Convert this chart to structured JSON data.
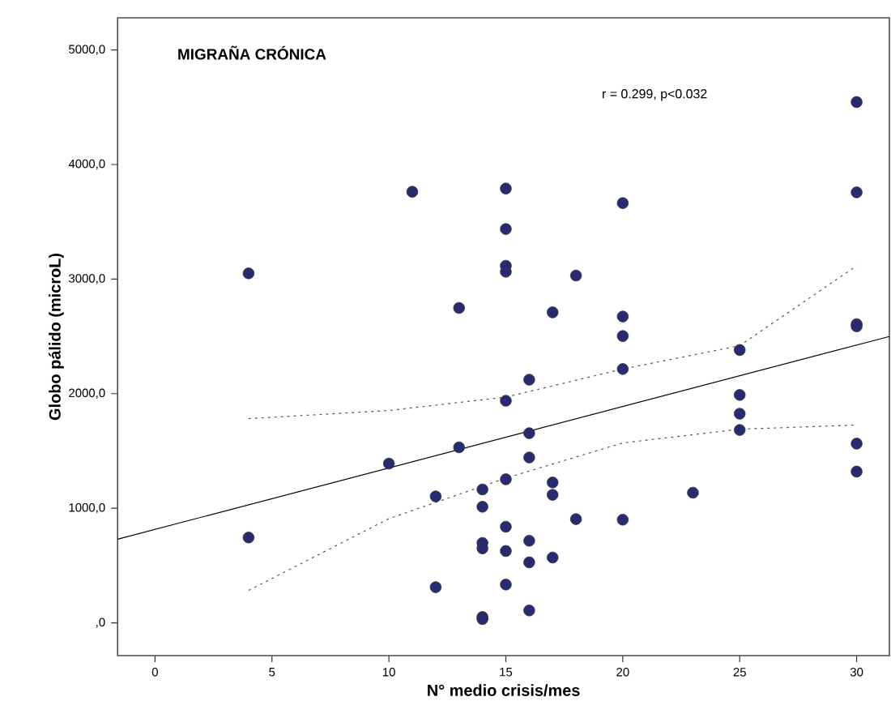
{
  "chart_data": {
    "type": "scatter",
    "title": "MIGRAÑA CRÓNICA",
    "xlabel": "N° medio crisis/mes",
    "ylabel": "Globo pálido (microL)",
    "annotations": [
      "r = 0.299, p<0.032"
    ],
    "xlim": [
      -1.6,
      31.4
    ],
    "ylim": [
      -286,
      5280
    ],
    "xticks": [
      0,
      5,
      10,
      15,
      20,
      25,
      30
    ],
    "yticks": [
      {
        "value": 0,
        "label": ",0"
      },
      {
        "value": 1000,
        "label": "1000,0"
      },
      {
        "value": 2000,
        "label": "2000,0"
      },
      {
        "value": 3000,
        "label": "3000,0"
      },
      {
        "value": 4000,
        "label": "4000,0"
      },
      {
        "value": 5000,
        "label": "5000,0"
      }
    ],
    "series": [
      {
        "color": "#272b72",
        "marker": "circle",
        "x": [
          4,
          4,
          10,
          11,
          12,
          12,
          13,
          13,
          14,
          14,
          14,
          14,
          14,
          14,
          15,
          15,
          15,
          15,
          15,
          15,
          15,
          15,
          15,
          16,
          16,
          16,
          16,
          16,
          16,
          17,
          17,
          17,
          17,
          18,
          18,
          20,
          20,
          20,
          20,
          20,
          23,
          25,
          25,
          25,
          25,
          30,
          30,
          30,
          30,
          30,
          30
        ],
        "values": [
          3050,
          745,
          1390,
          3762,
          1103,
          311,
          2748,
          1532,
          1164,
          1013,
          697,
          650,
          51,
          33,
          3790,
          3437,
          3116,
          3064,
          1938,
          1253,
          839,
          627,
          334,
          2122,
          1655,
          1443,
          716,
          528,
          108,
          2710,
          1225,
          1117,
          570,
          3031,
          905,
          3663,
          2673,
          2503,
          2215,
          900,
          1136,
          2381,
          1989,
          1825,
          1683,
          4545,
          3757,
          2607,
          2588,
          1564,
          1320
        ]
      },
      {
        "type": "line",
        "color": "#000000",
        "marker": "none",
        "line_style": "solid",
        "x": [
          -1.6,
          31.4
        ],
        "values": [
          730,
          2499
        ]
      },
      {
        "type": "line",
        "color": "#555555",
        "marker": "none",
        "line_style": "dotted",
        "x": [
          4,
          10,
          15,
          20,
          25,
          30
        ],
        "values": [
          1782,
          1853,
          1970,
          2215,
          2419,
          3116
        ]
      },
      {
        "type": "line",
        "color": "#555555",
        "marker": "none",
        "line_style": "dotted",
        "x": [
          4,
          10,
          15,
          20,
          25,
          30
        ],
        "values": [
          283,
          909,
          1263,
          1570,
          1690,
          1726
        ]
      }
    ]
  }
}
